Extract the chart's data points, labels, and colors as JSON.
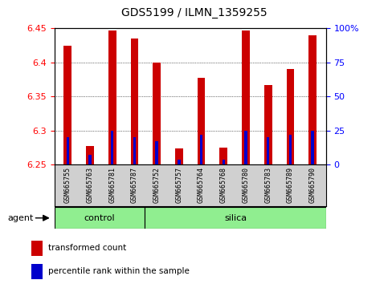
{
  "title": "GDS5199 / ILMN_1359255",
  "samples": [
    "GSM665755",
    "GSM665763",
    "GSM665781",
    "GSM665787",
    "GSM665752",
    "GSM665757",
    "GSM665764",
    "GSM665768",
    "GSM665780",
    "GSM665783",
    "GSM665789",
    "GSM665790"
  ],
  "groups": [
    "control",
    "control",
    "control",
    "control",
    "silica",
    "silica",
    "silica",
    "silica",
    "silica",
    "silica",
    "silica",
    "silica"
  ],
  "transformed_count": [
    6.425,
    6.278,
    6.447,
    6.435,
    6.4,
    6.274,
    6.378,
    6.275,
    6.447,
    6.367,
    6.39,
    6.44
  ],
  "percentile_rank": [
    20,
    7,
    25,
    20,
    17,
    4,
    22,
    4,
    25,
    20,
    22,
    25
  ],
  "ylim_left": [
    6.25,
    6.45
  ],
  "ylim_right": [
    0,
    100
  ],
  "yticks_left": [
    6.25,
    6.3,
    6.35,
    6.4,
    6.45
  ],
  "yticks_right": [
    0,
    25,
    50,
    75,
    100
  ],
  "bar_color": "#cc0000",
  "percentile_color": "#0000cc",
  "bar_width": 0.35,
  "baseline": 6.25,
  "control_color": "#90ee90",
  "silica_color": "#90ee90",
  "plot_bg": "#ffffff",
  "legend_items": [
    "transformed count",
    "percentile rank within the sample"
  ],
  "xlabel_agent": "agent",
  "title_fontsize": 10,
  "tick_fontsize": 8,
  "label_fontsize": 8
}
